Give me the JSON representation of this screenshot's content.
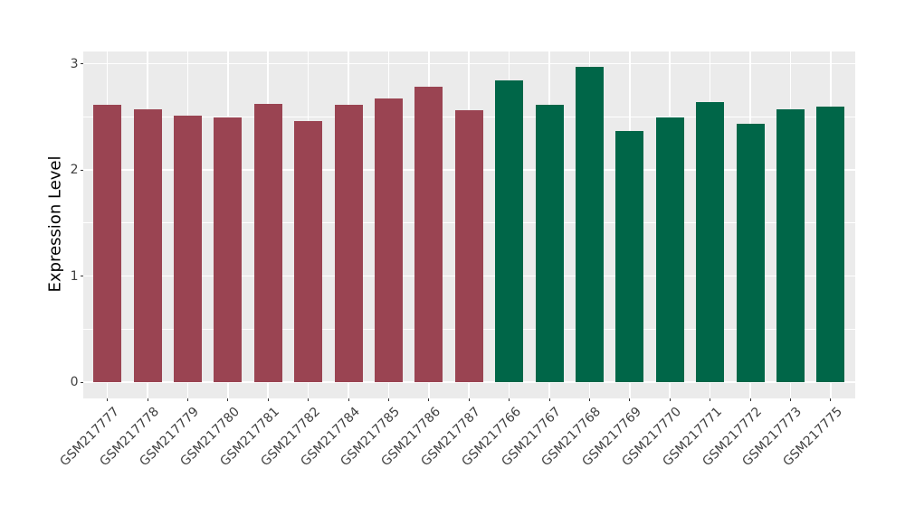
{
  "figure": {
    "background": "#FFFFFF"
  },
  "chart_data": {
    "type": "bar",
    "title": "",
    "xlabel": "",
    "ylabel": "Expression Level",
    "ylim": [
      0,
      3.15
    ],
    "yticks": [
      0,
      1,
      2,
      3
    ],
    "yminor": [
      0.5,
      1.5,
      2.5
    ],
    "legend": "none",
    "panel_background": "#EBEBEB",
    "gridline_color": "#FFFFFF",
    "axis_text_color": "#404040",
    "axis_title_color": "#000000",
    "tick_mark_color": "#333333",
    "x_label_angle": 45,
    "categories": [
      "GSM217777",
      "GSM217778",
      "GSM217779",
      "GSM217780",
      "GSM217781",
      "GSM217782",
      "GSM217784",
      "GSM217785",
      "GSM217786",
      "GSM217787",
      "GSM217766",
      "GSM217767",
      "GSM217768",
      "GSM217769",
      "GSM217770",
      "GSM217771",
      "GSM217772",
      "GSM217773",
      "GSM217775"
    ],
    "values": [
      2.61,
      2.57,
      2.51,
      2.49,
      2.62,
      2.46,
      2.61,
      2.67,
      2.78,
      2.56,
      2.84,
      2.61,
      2.97,
      2.37,
      2.49,
      2.64,
      2.43,
      2.57,
      2.6
    ],
    "groups": [
      "group1",
      "group1",
      "group1",
      "group1",
      "group1",
      "group1",
      "group1",
      "group1",
      "group1",
      "group1",
      "group2",
      "group2",
      "group2",
      "group2",
      "group2",
      "group2",
      "group2",
      "group2",
      "group2"
    ],
    "group_colors": {
      "group1": "#9A4452",
      "group2": "#006648"
    }
  }
}
